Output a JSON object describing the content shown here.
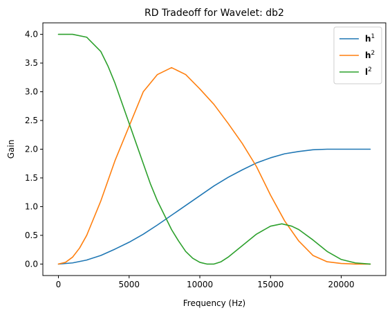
{
  "chart_data": {
    "type": "line",
    "title": "RD Tradeoff for Wavelet: db2",
    "xlabel": "Frequency (Hz)",
    "ylabel": "Gain",
    "xlim": [
      -1100,
      23150
    ],
    "ylim": [
      -0.2,
      4.2
    ],
    "xticks": [
      0,
      5000,
      10000,
      15000,
      20000
    ],
    "xtick_labels": [
      "0",
      "5000",
      "10000",
      "15000",
      "20000"
    ],
    "yticks": [
      0.0,
      0.5,
      1.0,
      1.5,
      2.0,
      2.5,
      3.0,
      3.5,
      4.0
    ],
    "ytick_labels": [
      "0.0",
      "0.5",
      "1.0",
      "1.5",
      "2.0",
      "2.5",
      "3.0",
      "3.5",
      "4.0"
    ],
    "grid": false,
    "legend_position": "top-right",
    "series": [
      {
        "name": "h",
        "name_sup": "1",
        "color": "#1f77b4",
        "x": [
          0,
          1000,
          2000,
          3000,
          4000,
          5000,
          6000,
          7000,
          8000,
          9000,
          10000,
          11000,
          12000,
          13000,
          14000,
          15000,
          16000,
          17000,
          18000,
          19000,
          20000,
          21000,
          22050
        ],
        "y": [
          0.0,
          0.02,
          0.07,
          0.15,
          0.26,
          0.38,
          0.52,
          0.68,
          0.85,
          1.02,
          1.19,
          1.36,
          1.51,
          1.64,
          1.76,
          1.85,
          1.92,
          1.96,
          1.99,
          2.0,
          2.0,
          2.0,
          2.0
        ]
      },
      {
        "name": "h",
        "name_sup": "2",
        "color": "#ff7f0e",
        "x": [
          0,
          500,
          1000,
          1500,
          2000,
          3000,
          4000,
          5000,
          5500,
          6000,
          7000,
          8000,
          9000,
          10000,
          11000,
          12000,
          13000,
          14000,
          15000,
          16000,
          17000,
          18000,
          19000,
          20000,
          21000,
          22050
        ],
        "y": [
          0.0,
          0.03,
          0.12,
          0.28,
          0.5,
          1.1,
          1.8,
          2.4,
          2.7,
          3.0,
          3.3,
          3.42,
          3.3,
          3.05,
          2.78,
          2.45,
          2.1,
          1.7,
          1.2,
          0.75,
          0.4,
          0.15,
          0.04,
          0.01,
          0.0,
          0.0
        ]
      },
      {
        "name": "l",
        "name_sup": "2",
        "color": "#2ca02c",
        "x": [
          0,
          1000,
          2000,
          3000,
          3500,
          4000,
          4500,
          5000,
          5500,
          6000,
          6500,
          7000,
          7500,
          8000,
          8500,
          9000,
          9500,
          10000,
          10500,
          11000,
          11500,
          12000,
          13000,
          14000,
          15000,
          15800,
          16500,
          17000,
          18000,
          19000,
          20000,
          21000,
          22050
        ],
        "y": [
          4.0,
          4.0,
          3.95,
          3.7,
          3.45,
          3.15,
          2.8,
          2.45,
          2.1,
          1.75,
          1.4,
          1.1,
          0.85,
          0.6,
          0.4,
          0.22,
          0.1,
          0.03,
          0.0,
          0.0,
          0.04,
          0.12,
          0.32,
          0.52,
          0.66,
          0.7,
          0.66,
          0.6,
          0.42,
          0.22,
          0.08,
          0.02,
          0.0
        ]
      }
    ]
  }
}
